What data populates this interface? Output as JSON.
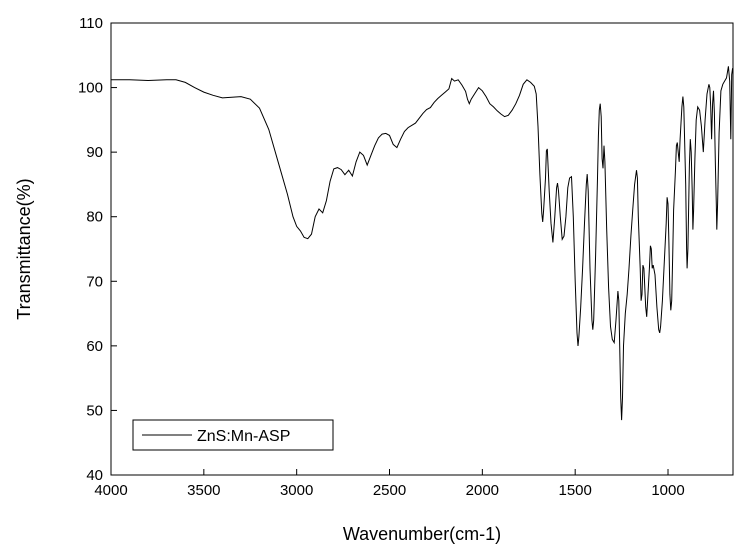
{
  "chart_data": {
    "type": "line",
    "title": "",
    "xlabel": "Wavenumber(cm-1)",
    "ylabel": "Transmittance(%)",
    "xlim": [
      4000,
      650
    ],
    "ylim": [
      40,
      110
    ],
    "x_reversed": true,
    "x_ticks": [
      4000,
      3500,
      3000,
      2500,
      2000,
      1500,
      1000
    ],
    "y_ticks": [
      40,
      50,
      60,
      70,
      80,
      90,
      100,
      110
    ],
    "grid": false,
    "legend_position": "bottom-left",
    "colors": {
      "line": "#000000",
      "axis": "#000000",
      "background": "#ffffff"
    },
    "series": [
      {
        "name": "ZnS:Mn-ASP",
        "points": [
          [
            4000,
            101.2
          ],
          [
            3900,
            101.2
          ],
          [
            3800,
            101.1
          ],
          [
            3700,
            101.2
          ],
          [
            3650,
            101.2
          ],
          [
            3600,
            100.8
          ],
          [
            3550,
            100.0
          ],
          [
            3500,
            99.3
          ],
          [
            3450,
            98.8
          ],
          [
            3400,
            98.4
          ],
          [
            3350,
            98.5
          ],
          [
            3300,
            98.6
          ],
          [
            3250,
            98.2
          ],
          [
            3200,
            96.8
          ],
          [
            3150,
            93.5
          ],
          [
            3100,
            88.5
          ],
          [
            3050,
            83.5
          ],
          [
            3020,
            80.0
          ],
          [
            3000,
            78.5
          ],
          [
            2980,
            77.8
          ],
          [
            2960,
            76.8
          ],
          [
            2940,
            76.6
          ],
          [
            2920,
            77.3
          ],
          [
            2900,
            80.0
          ],
          [
            2880,
            81.2
          ],
          [
            2860,
            80.6
          ],
          [
            2840,
            82.5
          ],
          [
            2820,
            85.5
          ],
          [
            2800,
            87.4
          ],
          [
            2780,
            87.6
          ],
          [
            2760,
            87.3
          ],
          [
            2740,
            86.5
          ],
          [
            2720,
            87.2
          ],
          [
            2700,
            86.3
          ],
          [
            2680,
            88.5
          ],
          [
            2660,
            90.0
          ],
          [
            2640,
            89.5
          ],
          [
            2620,
            88.0
          ],
          [
            2600,
            89.5
          ],
          [
            2580,
            91.0
          ],
          [
            2560,
            92.2
          ],
          [
            2540,
            92.8
          ],
          [
            2520,
            92.9
          ],
          [
            2500,
            92.6
          ],
          [
            2480,
            91.2
          ],
          [
            2460,
            90.7
          ],
          [
            2440,
            92.0
          ],
          [
            2420,
            93.2
          ],
          [
            2400,
            93.8
          ],
          [
            2360,
            94.5
          ],
          [
            2320,
            96.0
          ],
          [
            2300,
            96.6
          ],
          [
            2280,
            96.9
          ],
          [
            2260,
            97.7
          ],
          [
            2240,
            98.3
          ],
          [
            2220,
            98.8
          ],
          [
            2200,
            99.3
          ],
          [
            2180,
            99.8
          ],
          [
            2165,
            101.4
          ],
          [
            2150,
            101.0
          ],
          [
            2130,
            101.2
          ],
          [
            2110,
            100.4
          ],
          [
            2090,
            99.4
          ],
          [
            2080,
            98.2
          ],
          [
            2070,
            97.5
          ],
          [
            2060,
            98.2
          ],
          [
            2040,
            99.1
          ],
          [
            2020,
            100.0
          ],
          [
            2000,
            99.5
          ],
          [
            1980,
            98.6
          ],
          [
            1960,
            97.5
          ],
          [
            1940,
            97.0
          ],
          [
            1920,
            96.4
          ],
          [
            1900,
            95.9
          ],
          [
            1880,
            95.5
          ],
          [
            1860,
            95.7
          ],
          [
            1840,
            96.5
          ],
          [
            1820,
            97.5
          ],
          [
            1800,
            98.8
          ],
          [
            1780,
            100.5
          ],
          [
            1760,
            101.2
          ],
          [
            1740,
            100.8
          ],
          [
            1720,
            100.2
          ],
          [
            1710,
            99.0
          ],
          [
            1700,
            94.0
          ],
          [
            1690,
            86.5
          ],
          [
            1680,
            80.5
          ],
          [
            1675,
            79.2
          ],
          [
            1670,
            81.0
          ],
          [
            1660,
            86.0
          ],
          [
            1655,
            90.2
          ],
          [
            1650,
            90.5
          ],
          [
            1640,
            84.0
          ],
          [
            1630,
            79.0
          ],
          [
            1620,
            76.0
          ],
          [
            1610,
            80.0
          ],
          [
            1600,
            84.5
          ],
          [
            1595,
            85.2
          ],
          [
            1590,
            84.0
          ],
          [
            1580,
            80.0
          ],
          [
            1570,
            76.5
          ],
          [
            1560,
            77.0
          ],
          [
            1550,
            80.0
          ],
          [
            1540,
            84.5
          ],
          [
            1530,
            86.0
          ],
          [
            1520,
            86.2
          ],
          [
            1510,
            80.0
          ],
          [
            1500,
            70.0
          ],
          [
            1490,
            62.0
          ],
          [
            1485,
            60.0
          ],
          [
            1480,
            61.5
          ],
          [
            1470,
            66.0
          ],
          [
            1460,
            72.0
          ],
          [
            1450,
            79.0
          ],
          [
            1440,
            85.0
          ],
          [
            1435,
            86.6
          ],
          [
            1430,
            84.0
          ],
          [
            1420,
            72.0
          ],
          [
            1410,
            64.0
          ],
          [
            1405,
            62.5
          ],
          [
            1400,
            64.0
          ],
          [
            1390,
            74.0
          ],
          [
            1380,
            86.0
          ],
          [
            1375,
            92.5
          ],
          [
            1370,
            96.5
          ],
          [
            1365,
            97.5
          ],
          [
            1360,
            95.5
          ],
          [
            1355,
            89.0
          ],
          [
            1350,
            87.5
          ],
          [
            1345,
            91.0
          ],
          [
            1340,
            88.5
          ],
          [
            1330,
            78.0
          ],
          [
            1320,
            69.0
          ],
          [
            1310,
            63.0
          ],
          [
            1300,
            61.0
          ],
          [
            1290,
            60.5
          ],
          [
            1280,
            64.0
          ],
          [
            1270,
            68.5
          ],
          [
            1265,
            67.0
          ],
          [
            1260,
            60.0
          ],
          [
            1255,
            52.0
          ],
          [
            1250,
            48.5
          ],
          [
            1245,
            52.0
          ],
          [
            1240,
            60.0
          ],
          [
            1230,
            65.0
          ],
          [
            1220,
            68.0
          ],
          [
            1210,
            72.0
          ],
          [
            1200,
            77.0
          ],
          [
            1190,
            81.0
          ],
          [
            1180,
            85.0
          ],
          [
            1170,
            87.2
          ],
          [
            1165,
            86.0
          ],
          [
            1160,
            80.0
          ],
          [
            1150,
            72.0
          ],
          [
            1145,
            67.0
          ],
          [
            1140,
            68.0
          ],
          [
            1135,
            72.5
          ],
          [
            1130,
            72.0
          ],
          [
            1120,
            66.0
          ],
          [
            1115,
            64.5
          ],
          [
            1110,
            67.0
          ],
          [
            1100,
            72.0
          ],
          [
            1095,
            75.5
          ],
          [
            1090,
            75.0
          ],
          [
            1085,
            72.0
          ],
          [
            1080,
            72.5
          ],
          [
            1070,
            71.0
          ],
          [
            1060,
            66.0
          ],
          [
            1050,
            62.5
          ],
          [
            1045,
            62.0
          ],
          [
            1040,
            63.0
          ],
          [
            1030,
            67.0
          ],
          [
            1020,
            73.0
          ],
          [
            1010,
            79.0
          ],
          [
            1005,
            83.0
          ],
          [
            1000,
            82.0
          ],
          [
            995,
            76.0
          ],
          [
            990,
            68.0
          ],
          [
            985,
            65.5
          ],
          [
            980,
            67.0
          ],
          [
            975,
            74.0
          ],
          [
            970,
            81.0
          ],
          [
            960,
            87.0
          ],
          [
            955,
            91.0
          ],
          [
            950,
            91.5
          ],
          [
            945,
            90.0
          ],
          [
            940,
            88.5
          ],
          [
            935,
            92.0
          ],
          [
            925,
            97.0
          ],
          [
            920,
            98.6
          ],
          [
            915,
            97.0
          ],
          [
            905,
            85.0
          ],
          [
            900,
            75.0
          ],
          [
            897,
            72.0
          ],
          [
            893,
            75.0
          ],
          [
            885,
            88.0
          ],
          [
            880,
            92.0
          ],
          [
            875,
            90.0
          ],
          [
            870,
            84.0
          ],
          [
            866,
            78.0
          ],
          [
            862,
            81.0
          ],
          [
            855,
            89.0
          ],
          [
            848,
            95.0
          ],
          [
            840,
            97.0
          ],
          [
            830,
            96.5
          ],
          [
            820,
            94.0
          ],
          [
            810,
            90.0
          ],
          [
            800,
            95.0
          ],
          [
            790,
            99.0
          ],
          [
            780,
            100.5
          ],
          [
            775,
            100.0
          ],
          [
            770,
            97.0
          ],
          [
            765,
            92.0
          ],
          [
            760,
            97.5
          ],
          [
            755,
            99.5
          ],
          [
            750,
            96.0
          ],
          [
            745,
            88.0
          ],
          [
            740,
            82.0
          ],
          [
            737,
            78.0
          ],
          [
            733,
            82.0
          ],
          [
            725,
            93.0
          ],
          [
            715,
            99.5
          ],
          [
            705,
            100.5
          ],
          [
            695,
            101.0
          ],
          [
            685,
            101.5
          ],
          [
            675,
            103.3
          ],
          [
            668,
            101.0
          ],
          [
            662,
            92.0
          ],
          [
            657,
            102.0
          ],
          [
            652,
            103.0
          ]
        ]
      }
    ]
  }
}
